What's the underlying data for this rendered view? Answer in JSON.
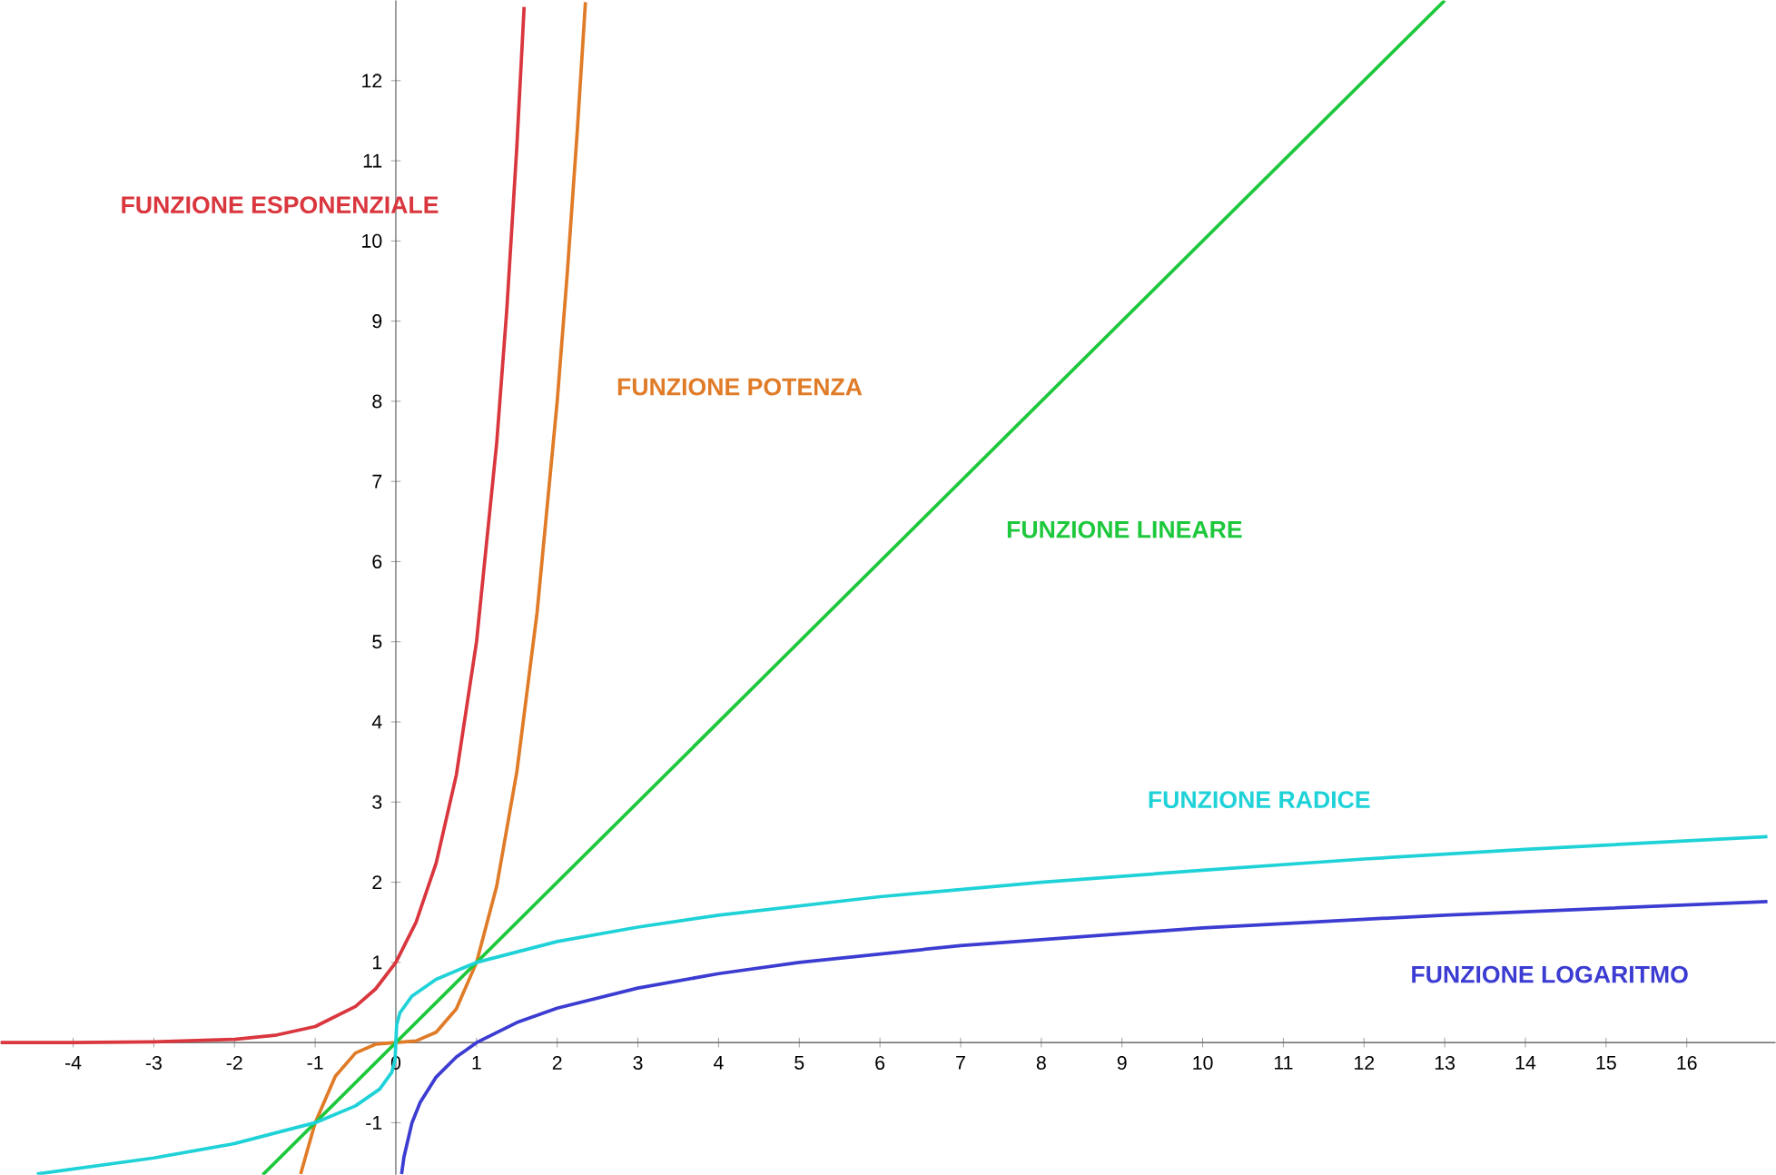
{
  "chart_data": {
    "type": "line",
    "xlim": [
      -4.9,
      17.1
    ],
    "ylim": [
      -1.65,
      13
    ],
    "xticks": [
      -4,
      -3,
      -2,
      -1,
      0,
      1,
      2,
      3,
      4,
      5,
      6,
      7,
      8,
      9,
      10,
      11,
      12,
      13,
      14,
      15,
      16
    ],
    "yticks": [
      -1,
      1,
      2,
      3,
      4,
      5,
      6,
      7,
      8,
      9,
      10,
      11,
      12
    ],
    "grid": false,
    "line_style": "solid",
    "marker": "none",
    "series": [
      {
        "name": "FUNZIONE ESPONENZIALE",
        "color": "#d9363e",
        "x": [
          -4.9,
          -4,
          -3,
          -2,
          -1.5,
          -1,
          -0.5,
          -0.25,
          0,
          0.25,
          0.5,
          0.75,
          1,
          1.25,
          1.375,
          1.5,
          1.59
        ],
        "values": [
          0,
          0,
          0.01,
          0.04,
          0.09,
          0.2,
          0.45,
          0.67,
          1,
          1.5,
          2.24,
          3.34,
          5,
          7.48,
          9.14,
          11.18,
          12.92
        ]
      },
      {
        "name": "FUNZIONE POTENZA",
        "color": "#e07b28",
        "x": [
          -1.18,
          -1,
          -0.75,
          -0.5,
          -0.25,
          0,
          0.25,
          0.5,
          0.75,
          1,
          1.25,
          1.5,
          1.75,
          2,
          2.125,
          2.25,
          2.35
        ],
        "values": [
          -1.64,
          -1,
          -0.42,
          -0.13,
          -0.02,
          0,
          0.02,
          0.13,
          0.42,
          1,
          1.95,
          3.38,
          5.36,
          8,
          9.6,
          11.39,
          12.98
        ]
      },
      {
        "name": "FUNZIONE LINEARE",
        "color": "#1ec83c",
        "x": [
          -1.65,
          13
        ],
        "values": [
          -1.65,
          13
        ]
      },
      {
        "name": "FUNZIONE RADICE",
        "color": "#1ed2d8",
        "x": [
          -4.45,
          -3,
          -2,
          -1,
          -0.5,
          -0.2,
          -0.05,
          -0.01,
          0,
          0.01,
          0.05,
          0.2,
          0.5,
          1,
          2,
          3,
          4,
          6,
          8,
          10,
          12,
          14,
          17
        ],
        "values": [
          -1.64,
          -1.44,
          -1.26,
          -1,
          -0.79,
          -0.58,
          -0.37,
          -0.22,
          0,
          0.22,
          0.37,
          0.58,
          0.79,
          1,
          1.26,
          1.44,
          1.59,
          1.82,
          2,
          2.15,
          2.29,
          2.41,
          2.57
        ]
      },
      {
        "name": "FUNZIONE LOGARITMO",
        "color": "#3c3cd2",
        "x": [
          0.071,
          0.1,
          0.2,
          0.3,
          0.5,
          0.75,
          1,
          1.5,
          2,
          3,
          4,
          5,
          7,
          10,
          13,
          17
        ],
        "values": [
          -1.64,
          -1.43,
          -1,
          -0.75,
          -0.43,
          -0.18,
          0,
          0.25,
          0.43,
          0.68,
          0.86,
          1,
          1.21,
          1.43,
          1.59,
          1.76
        ]
      }
    ]
  }
}
